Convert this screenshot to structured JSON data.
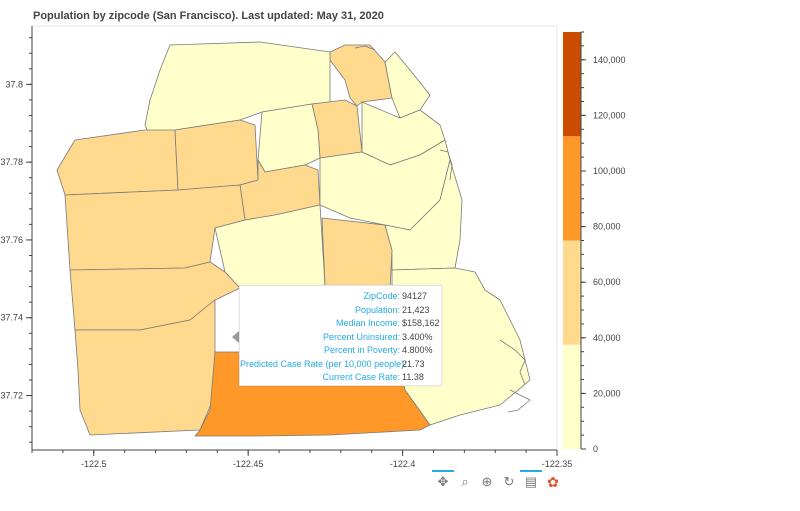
{
  "title": "Population by zipcode (San Francisco). Last updated: May 31, 2020",
  "chart_data": {
    "type": "choropleth",
    "title": "Population by zipcode (San Francisco). Last updated: May 31, 2020",
    "x_axis": {
      "range": [
        -122.52,
        -122.35
      ],
      "ticks": [
        -122.5,
        -122.45,
        -122.4,
        -122.35
      ],
      "tick_labels": [
        "-122.5",
        "-122.45",
        "-122.4",
        "-122.35"
      ]
    },
    "y_axis": {
      "range": [
        37.706,
        37.815
      ],
      "ticks": [
        37.72,
        37.74,
        37.76,
        37.78,
        37.8
      ],
      "tick_labels": [
        "37.72",
        "37.74",
        "37.76",
        "37.78",
        "37.8"
      ]
    },
    "colorbar": {
      "range": [
        0,
        150000
      ],
      "ticks": [
        0,
        20000,
        40000,
        60000,
        80000,
        100000,
        120000,
        140000
      ],
      "tick_labels": [
        "0",
        "20,000",
        "40,000",
        "60,000",
        "80,000",
        "100,000",
        "120,000",
        "140,000"
      ],
      "bins": [
        {
          "from": 0,
          "to": 37500,
          "color": "#ffffcc"
        },
        {
          "from": 37500,
          "to": 75000,
          "color": "#fed98e"
        },
        {
          "from": 75000,
          "to": 112500,
          "color": "#fe9929"
        },
        {
          "from": 112500,
          "to": 150000,
          "color": "#cc4c02"
        }
      ]
    }
  },
  "tooltip": {
    "rows": [
      {
        "label": "ZipCode:",
        "value": "94127"
      },
      {
        "label": "Population:",
        "value": "21,423"
      },
      {
        "label": "Median Income:",
        "value": "$158,162"
      },
      {
        "label": "Percent Uninsured:",
        "value": "3.400%"
      },
      {
        "label": "Percent in Poverty:",
        "value": "4.800%"
      },
      {
        "label": "Predicted Case Rate (per 10,000 people):",
        "value": "21.73"
      },
      {
        "label": "Current Case Rate:",
        "value": "11.38"
      }
    ]
  },
  "toolbar": {
    "tools": [
      {
        "name": "pan-tool",
        "glyph": "✥",
        "active": true
      },
      {
        "name": "box-zoom-tool",
        "glyph": "⌕",
        "active": false
      },
      {
        "name": "wheel-zoom-tool",
        "glyph": "⊕",
        "active": false
      },
      {
        "name": "reset-tool",
        "glyph": "↻",
        "active": false
      },
      {
        "name": "hover-tool",
        "glyph": "▤",
        "active": true
      },
      {
        "name": "bokeh-logo",
        "glyph": "✿",
        "active": false
      }
    ]
  },
  "colors": {
    "light": "#ffffcc",
    "medium": "#fed98e",
    "dark": "#fe9929",
    "darkest": "#cc4c02",
    "border": "#7a7a7a",
    "accent": "#26aae1"
  }
}
